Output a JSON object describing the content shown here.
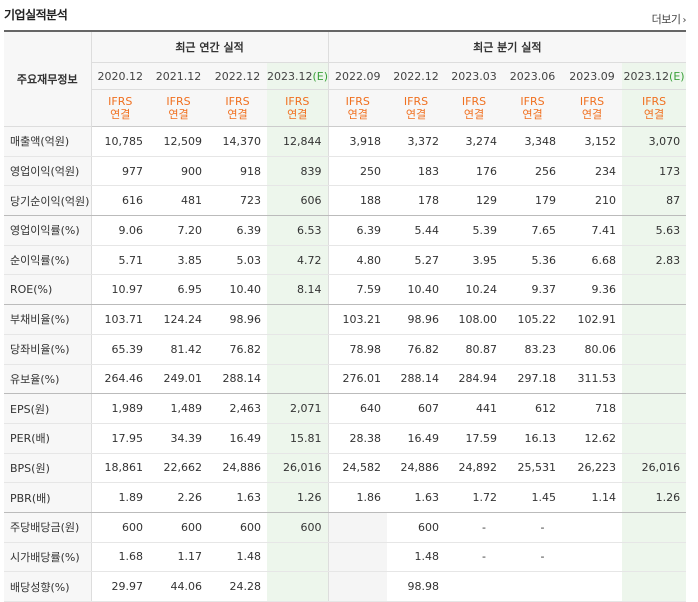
{
  "title": "기업실적분석",
  "more_label": "더보기",
  "corner_label": "주요재무정보",
  "groups": {
    "annual": "최근 연간 실적",
    "quarterly": "최근 분기 실적"
  },
  "periods": [
    {
      "label": "2020.12",
      "est": false
    },
    {
      "label": "2021.12",
      "est": false
    },
    {
      "label": "2022.12",
      "est": false
    },
    {
      "label": "2023.12",
      "est": true,
      "est_mark": "(E)"
    },
    {
      "label": "2022.09",
      "est": false
    },
    {
      "label": "2022.12",
      "est": false
    },
    {
      "label": "2023.03",
      "est": false
    },
    {
      "label": "2023.06",
      "est": false
    },
    {
      "label": "2023.09",
      "est": false
    },
    {
      "label": "2023.12",
      "est": true,
      "est_mark": "(E)"
    }
  ],
  "report_type": {
    "line1": "IFRS",
    "line2": "연결"
  },
  "rows": [
    {
      "label": "매출액(억원)",
      "values": [
        "10,785",
        "12,509",
        "14,370",
        "12,844",
        "3,918",
        "3,372",
        "3,274",
        "3,348",
        "3,152",
        "3,070"
      ]
    },
    {
      "label": "영업이익(억원)",
      "values": [
        "977",
        "900",
        "918",
        "839",
        "250",
        "183",
        "176",
        "256",
        "234",
        "173"
      ]
    },
    {
      "label": "당기순이익(억원)",
      "values": [
        "616",
        "481",
        "723",
        "606",
        "188",
        "178",
        "129",
        "179",
        "210",
        "87"
      ],
      "group_end": true
    },
    {
      "label": "영업이익률(%)",
      "values": [
        "9.06",
        "7.20",
        "6.39",
        "6.53",
        "6.39",
        "5.44",
        "5.39",
        "7.65",
        "7.41",
        "5.63"
      ]
    },
    {
      "label": "순이익률(%)",
      "values": [
        "5.71",
        "3.85",
        "5.03",
        "4.72",
        "4.80",
        "5.27",
        "3.95",
        "5.36",
        "6.68",
        "2.83"
      ]
    },
    {
      "label": "ROE(%)",
      "values": [
        "10.97",
        "6.95",
        "10.40",
        "8.14",
        "7.59",
        "10.40",
        "10.24",
        "9.37",
        "9.36",
        ""
      ],
      "group_end": true
    },
    {
      "label": "부채비율(%)",
      "values": [
        "103.71",
        "124.24",
        "98.96",
        "",
        "103.21",
        "98.96",
        "108.00",
        "105.22",
        "102.91",
        ""
      ]
    },
    {
      "label": "당좌비율(%)",
      "values": [
        "65.39",
        "81.42",
        "76.82",
        "",
        "78.98",
        "76.82",
        "80.87",
        "83.23",
        "80.06",
        ""
      ]
    },
    {
      "label": "유보율(%)",
      "values": [
        "264.46",
        "249.01",
        "288.14",
        "",
        "276.01",
        "288.14",
        "284.94",
        "297.18",
        "311.53",
        ""
      ],
      "group_end": true
    },
    {
      "label": "EPS(원)",
      "values": [
        "1,989",
        "1,489",
        "2,463",
        "2,071",
        "640",
        "607",
        "441",
        "612",
        "718",
        ""
      ]
    },
    {
      "label": "PER(배)",
      "values": [
        "17.95",
        "34.39",
        "16.49",
        "15.81",
        "28.38",
        "16.49",
        "17.59",
        "16.13",
        "12.62",
        ""
      ]
    },
    {
      "label": "BPS(원)",
      "values": [
        "18,861",
        "22,662",
        "24,886",
        "26,016",
        "24,582",
        "24,886",
        "24,892",
        "25,531",
        "26,223",
        "26,016"
      ]
    },
    {
      "label": "PBR(배)",
      "values": [
        "1.89",
        "2.26",
        "1.63",
        "1.26",
        "1.86",
        "1.63",
        "1.72",
        "1.45",
        "1.14",
        "1.26"
      ],
      "group_end": true
    },
    {
      "label": "주당배당금(원)",
      "values": [
        "600",
        "600",
        "600",
        "600",
        null,
        "600",
        "-",
        "-",
        "",
        ""
      ]
    },
    {
      "label": "시가배당률(%)",
      "values": [
        "1.68",
        "1.17",
        "1.48",
        "",
        null,
        "1.48",
        "-",
        "-",
        "",
        ""
      ]
    },
    {
      "label": "배당성향(%)",
      "values": [
        "29.97",
        "44.06",
        "24.28",
        "",
        null,
        "98.98",
        "",
        "",
        "",
        ""
      ]
    }
  ]
}
